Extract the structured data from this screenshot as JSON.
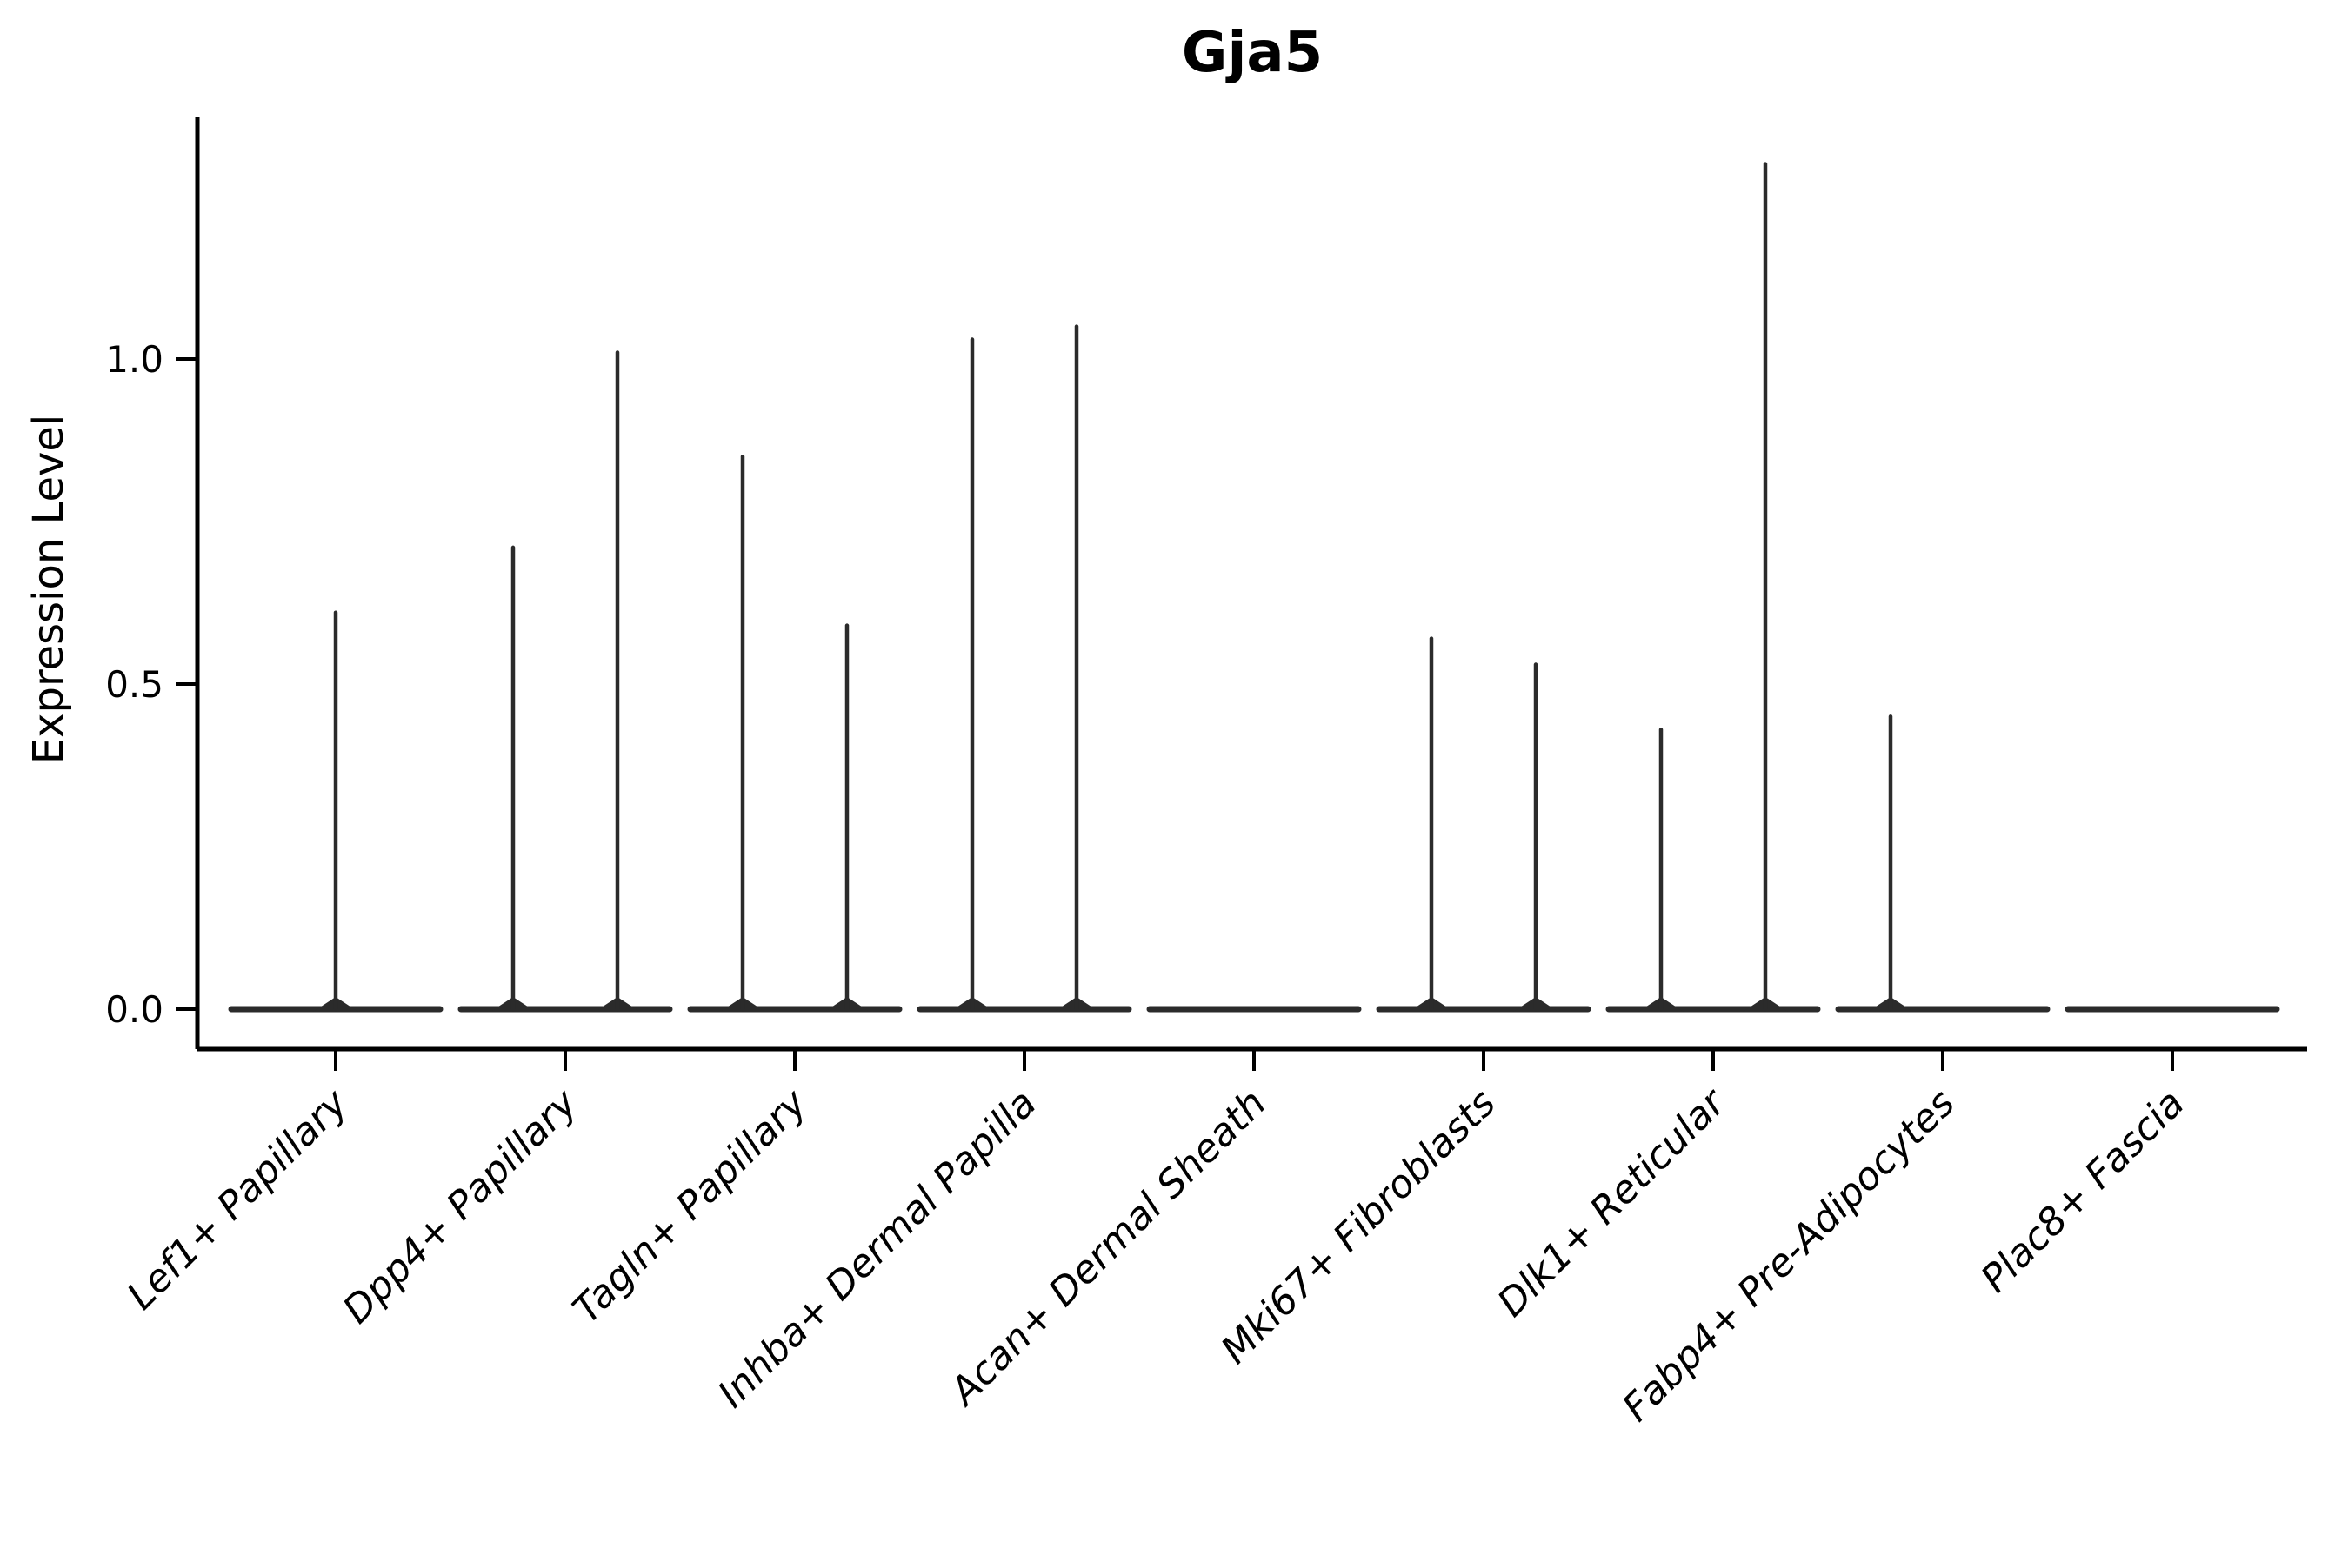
{
  "chart_data": {
    "type": "violin",
    "title": "Gja5",
    "xlabel": "",
    "ylabel": "Expression Level",
    "ylim": [
      -0.06,
      1.37
    ],
    "grid": false,
    "legend": "none",
    "line_color": "#2b2b2b",
    "axis_color": "#000000",
    "yticks": [
      {
        "label": "0.0",
        "value": 0.0
      },
      {
        "label": "0.5",
        "value": 0.5
      },
      {
        "label": "1.0",
        "value": 1.0
      }
    ],
    "categories": [
      "Lef1+ Papillary",
      "Dpp4+ Papillary",
      "Tagln+ Papillary",
      "Inhba+ Dermal Papilla",
      "Acan+ Dermal Sheath",
      "Mki67+ Fibroblasts",
      "Dlk1+ Reticular",
      "Fabp4+ Pre-Adipocytes",
      "Plac8+ Fascia"
    ],
    "violins": [
      {
        "category": "Lef1+ Papillary",
        "spikes": [
          {
            "side": "center",
            "max": 0.61
          }
        ]
      },
      {
        "category": "Dpp4+ Papillary",
        "spikes": [
          {
            "side": "left",
            "max": 0.71
          },
          {
            "side": "right",
            "max": 1.01
          }
        ]
      },
      {
        "category": "Tagln+ Papillary",
        "spikes": [
          {
            "side": "left",
            "max": 0.85
          },
          {
            "side": "right",
            "max": 0.59
          }
        ]
      },
      {
        "category": "Inhba+ Dermal Papilla",
        "spikes": [
          {
            "side": "left",
            "max": 1.03
          },
          {
            "side": "right",
            "max": 1.05
          }
        ]
      },
      {
        "category": "Acan+ Dermal Sheath",
        "spikes": []
      },
      {
        "category": "Mki67+ Fibroblasts",
        "spikes": [
          {
            "side": "left",
            "max": 0.57
          },
          {
            "side": "right",
            "max": 0.53
          }
        ]
      },
      {
        "category": "Dlk1+ Reticular",
        "spikes": [
          {
            "side": "left",
            "max": 0.43
          },
          {
            "side": "right",
            "max": 1.3
          }
        ]
      },
      {
        "category": "Fabp4+ Pre-Adipocytes",
        "spikes": [
          {
            "side": "left",
            "max": 0.45
          }
        ]
      },
      {
        "category": "Plac8+ Fascia",
        "spikes": []
      }
    ]
  }
}
